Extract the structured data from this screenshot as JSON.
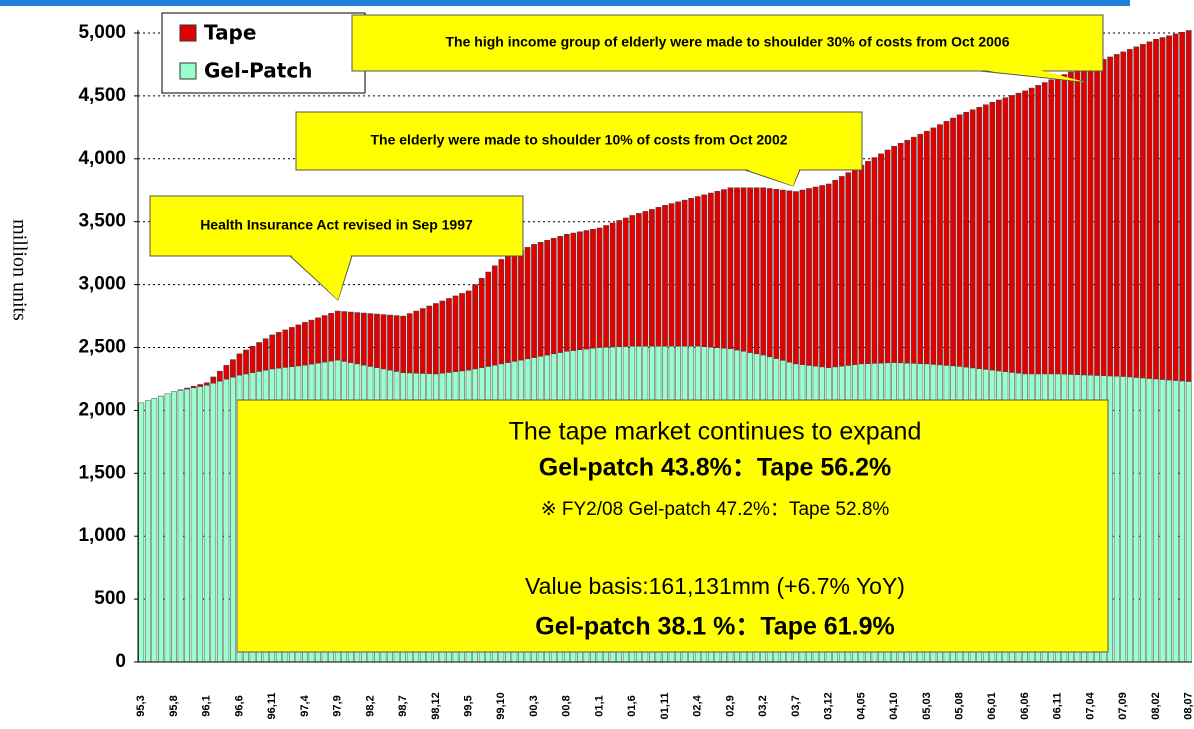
{
  "chart_data": {
    "type": "stacked_bar",
    "ylabel": "million units",
    "ylim": [
      0,
      5000
    ],
    "yticks": [
      0,
      500,
      {
        "value": 1000,
        "label": "1,000"
      },
      {
        "value": 1500,
        "label": "1,500"
      },
      {
        "value": 2000,
        "label": "2,000"
      },
      {
        "value": 2500,
        "label": "2,500"
      },
      {
        "value": 3000,
        "label": "3,000"
      },
      {
        "value": 3500,
        "label": "3,500"
      },
      {
        "value": 4000,
        "label": "4,000"
      },
      {
        "value": 4500,
        "label": "4,500"
      },
      {
        "value": 5000,
        "label": "5,000"
      }
    ],
    "grid": true,
    "legend": "upper left",
    "categories": [
      "95,3",
      null,
      null,
      null,
      null,
      "95,8",
      null,
      null,
      null,
      null,
      "96,1",
      null,
      null,
      null,
      null,
      "96,6",
      null,
      null,
      null,
      null,
      "96,11",
      null,
      null,
      null,
      null,
      "97,4",
      null,
      null,
      null,
      null,
      "97,9",
      null,
      null,
      null,
      null,
      "98,2",
      null,
      null,
      null,
      null,
      "98,7",
      null,
      null,
      null,
      null,
      "98,12",
      null,
      null,
      null,
      null,
      "99,5",
      null,
      null,
      null,
      null,
      "99,10",
      null,
      null,
      null,
      null,
      "00,3",
      null,
      null,
      null,
      null,
      "00,8",
      null,
      null,
      null,
      null,
      "01,1",
      null,
      null,
      null,
      null,
      "01,6",
      null,
      null,
      null,
      null,
      "01,11",
      null,
      null,
      null,
      null,
      "02,4",
      null,
      null,
      null,
      null,
      "02,9",
      null,
      null,
      null,
      null,
      "03,2",
      null,
      null,
      null,
      null,
      "03,7",
      null,
      null,
      null,
      null,
      "03,12",
      null,
      null,
      null,
      null,
      "04,05",
      null,
      null,
      null,
      null,
      "04,10",
      null,
      null,
      null,
      null,
      "05,03",
      null,
      null,
      null,
      null,
      "05,08",
      null,
      null,
      null,
      null,
      "06,01",
      null,
      null,
      null,
      null,
      "06,06",
      null,
      null,
      null,
      null,
      "06,11",
      null,
      null,
      null,
      null,
      "07,04",
      null,
      null,
      null,
      null,
      "07,09",
      null,
      null,
      null,
      null,
      "08,02",
      null,
      null,
      null,
      null,
      "08,07"
    ],
    "series": [
      {
        "name": "Gel-Patch",
        "color": "#99ffcc",
        "values": [
          2060,
          2078,
          2096,
          2114,
          2132,
          2150,
          2160,
          2170,
          2180,
          2190,
          2200,
          2216,
          2232,
          2248,
          2264,
          2280,
          2290,
          2300,
          2310,
          2320,
          2330,
          2336,
          2342,
          2348,
          2354,
          2360,
          2368,
          2376,
          2384,
          2392,
          2400,
          2390,
          2380,
          2370,
          2360,
          2350,
          2340,
          2330,
          2320,
          2310,
          2300,
          2298,
          2296,
          2294,
          2292,
          2290,
          2296,
          2302,
          2308,
          2314,
          2320,
          2330,
          2340,
          2350,
          2360,
          2370,
          2380,
          2390,
          2400,
          2410,
          2420,
          2430,
          2440,
          2450,
          2460,
          2470,
          2476,
          2482,
          2488,
          2494,
          2500,
          2502,
          2504,
          2506,
          2508,
          2510,
          2510,
          2510,
          2510,
          2510,
          2510,
          2510,
          2510,
          2510,
          2510,
          2510,
          2506,
          2502,
          2498,
          2494,
          2490,
          2480,
          2470,
          2460,
          2450,
          2440,
          2426,
          2412,
          2398,
          2384,
          2370,
          2364,
          2358,
          2352,
          2346,
          2340,
          2346,
          2352,
          2358,
          2364,
          2370,
          2372,
          2374,
          2376,
          2378,
          2380,
          2378,
          2376,
          2374,
          2372,
          2370,
          2366,
          2362,
          2358,
          2354,
          2350,
          2344,
          2338,
          2332,
          2326,
          2320,
          2314,
          2308,
          2302,
          2296,
          2290,
          2290,
          2290,
          2290,
          2290,
          2290,
          2288,
          2286,
          2284,
          2282,
          2280,
          2278,
          2276,
          2274,
          2272,
          2270,
          2266,
          2262,
          2258,
          2254,
          2250,
          2246,
          2242,
          2238,
          2234,
          2230
        ]
      },
      {
        "name": "Tape",
        "color": "#e00000",
        "values": [
          0,
          0,
          0,
          0,
          0,
          0,
          4,
          8,
          12,
          16,
          20,
          50,
          80,
          110,
          140,
          170,
          190,
          210,
          230,
          250,
          270,
          284,
          298,
          312,
          326,
          340,
          350,
          360,
          370,
          380,
          390,
          396,
          402,
          408,
          414,
          420,
          426,
          432,
          438,
          444,
          450,
          472,
          494,
          516,
          538,
          560,
          574,
          588,
          602,
          616,
          630,
          670,
          710,
          750,
          790,
          830,
          844,
          858,
          872,
          886,
          900,
          906,
          912,
          918,
          924,
          930,
          934,
          938,
          942,
          946,
          950,
          968,
          986,
          1004,
          1022,
          1040,
          1056,
          1072,
          1088,
          1104,
          1120,
          1134,
          1148,
          1162,
          1176,
          1190,
          1208,
          1226,
          1244,
          1262,
          1280,
          1290,
          1300,
          1310,
          1320,
          1330,
          1338,
          1346,
          1354,
          1362,
          1370,
          1388,
          1406,
          1424,
          1442,
          1460,
          1484,
          1508,
          1532,
          1556,
          1580,
          1608,
          1636,
          1664,
          1692,
          1720,
          1746,
          1772,
          1798,
          1824,
          1850,
          1880,
          1910,
          1940,
          1970,
          2000,
          2026,
          2052,
          2078,
          2104,
          2130,
          2154,
          2178,
          2202,
          2226,
          2250,
          2272,
          2294,
          2316,
          2338,
          2360,
          2382,
          2404,
          2426,
          2448,
          2470,
          2492,
          2514,
          2536,
          2558,
          2580,
          2604,
          2628,
          2652,
          2676,
          2700,
          2718,
          2736,
          2754,
          2772,
          2790
        ]
      }
    ],
    "annotations": [
      "Health Insurance Act revised in Sep 1997",
      "The elderly were made to shoulder 10% of costs from Oct 2002",
      "The high income group of elderly were made to shoulder 30% of costs from Oct 2006"
    ],
    "summary_box": [
      "The tape market continues to expand",
      "Gel-patch 43.8%：Tape 56.2%",
      "※ FY2/08  Gel-patch 47.2%：Tape 52.8%",
      "Value basis:161,131mm (+6.7% YoY)",
      "Gel-patch 38.1 %：Tape 61.9%"
    ]
  }
}
